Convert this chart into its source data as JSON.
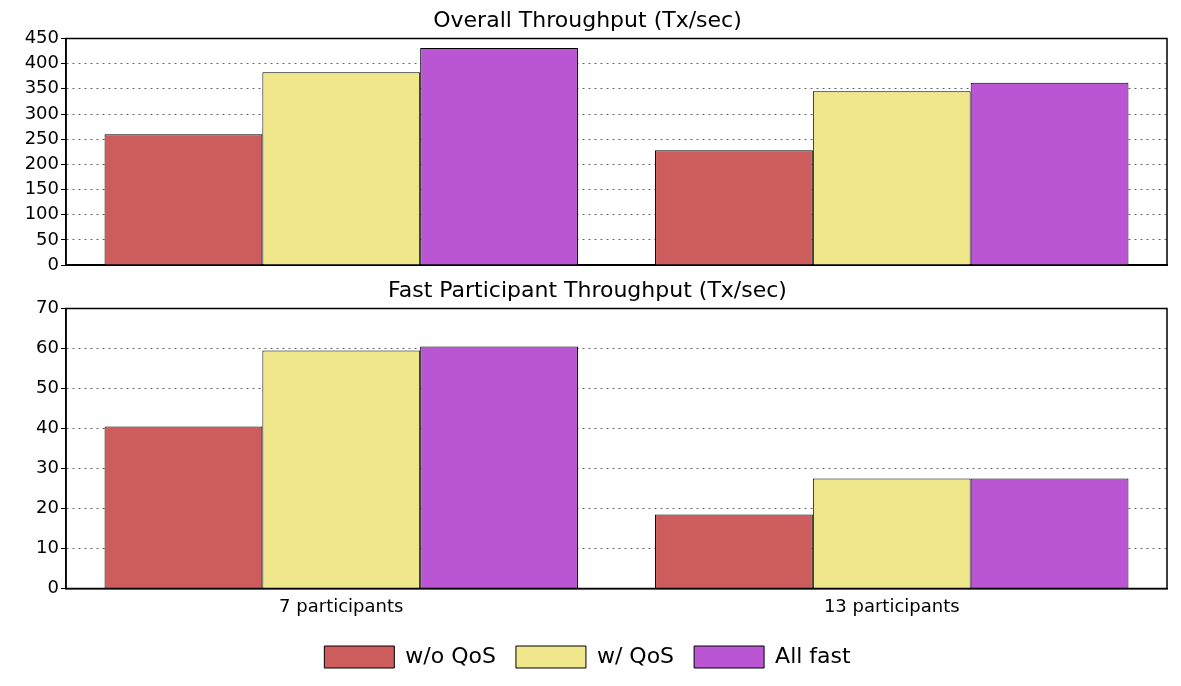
{
  "chart_data": [
    {
      "type": "bar",
      "title": "Overall Throughput (Tx/sec)",
      "categories": [
        null,
        null
      ],
      "series": [
        {
          "color": "#cd5c5c",
          "values": [
            260,
            228
          ]
        },
        {
          "color": "#f0e68c",
          "values": [
            383,
            345
          ]
        },
        {
          "color": "#ba55d3",
          "values": [
            431,
            362
          ]
        }
      ],
      "ylim": [
        0,
        450
      ],
      "yticks": [
        0,
        50,
        100,
        150,
        200,
        250,
        300,
        350,
        400,
        450
      ],
      "grid": "y",
      "tick_labels": "y"
    },
    {
      "type": "bar",
      "title": "Fast Participant Throughput (Tx/sec)",
      "categories": [
        "7 participants",
        "13 participants"
      ],
      "series": [
        {
          "name": "w/o QoS",
          "color": "#cd5c5c",
          "values": [
            40.5,
            18.5
          ]
        },
        {
          "name": "w/ QoS",
          "color": "#f0e68c",
          "values": [
            59.5,
            27.5
          ]
        },
        {
          "name": "All fast",
          "color": "#ba55d3",
          "values": [
            60.5,
            27.5
          ]
        }
      ],
      "ylim": [
        0,
        70
      ],
      "yticks": [
        0,
        10,
        20,
        30,
        40,
        50,
        60,
        70
      ],
      "grid": "y",
      "legend": "bottom"
    }
  ]
}
